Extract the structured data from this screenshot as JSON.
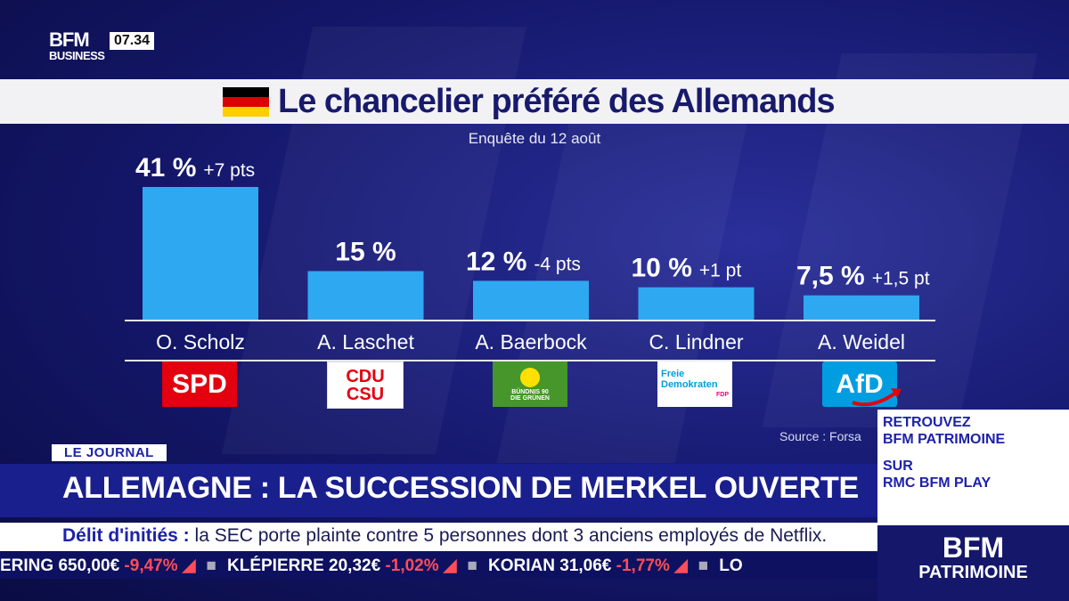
{
  "channel": {
    "logo_top": "BFM",
    "logo_bottom": "BUSINESS",
    "clock": "07.34"
  },
  "chart_data": {
    "type": "bar",
    "title": "Le chancelier préféré des Allemands",
    "subtitle": "Enquête du 12 août",
    "categories": [
      "O. Scholz",
      "A. Laschet",
      "A. Baerbock",
      "C. Lindner",
      "A. Weidel"
    ],
    "values": [
      41,
      15,
      12,
      10,
      7.5
    ],
    "value_labels": [
      "41 %",
      "15 %",
      "12 %",
      "10 %",
      "7,5 %"
    ],
    "changes": [
      "+7 pts",
      "",
      "-4 pts",
      "+1 pt",
      "+1,5 pt"
    ],
    "parties": [
      "SPD",
      "CDU CSU",
      "BÜNDNIS 90 DIE GRÜNEN",
      "Freie Demokraten FDP",
      "AfD"
    ],
    "ylim": [
      0,
      41
    ],
    "bar_color": "#2fa8f2",
    "source": "Source : Forsa"
  },
  "party_logos": {
    "spd": "SPD",
    "cdu_line1": "CDU",
    "cdu_line2": "CSU",
    "gruene_line1": "BÜNDNIS 90",
    "gruene_line2": "DIE GRÜNEN",
    "fdp_line1": "Freie",
    "fdp_line2": "Demokraten",
    "fdp_line3": "FDP",
    "afd": "AfD"
  },
  "lower_third": {
    "tag": "LE JOURNAL",
    "headline": "ALLEMAGNE : LA SUCCESSION DE MERKEL OUVERTE",
    "news_label": "Délit d'initiés :",
    "news_text": " la SEC porte plainte contre 5 personnes dont 3 anciens employés de Netflix.",
    "ticker": [
      {
        "name": "ERING",
        "price": "650,00€",
        "change": "-9,47%"
      },
      {
        "name": "KLÉPIERRE",
        "price": "20,32€",
        "change": "-1,02%"
      },
      {
        "name": "KORIAN",
        "price": "31,06€",
        "change": "-1,77%"
      }
    ],
    "ticker_tail": "LO"
  },
  "promo": {
    "line1": "RETROUVEZ",
    "line2": "BFM PATRIMOINE",
    "line3": "SUR",
    "line4": "RMC BFM PLAY",
    "brand_top": "BFM",
    "brand_bottom": "PATRIMOINE"
  },
  "colors": {
    "accent": "#1d22a8",
    "background": "#14176a",
    "bar": "#2fa8f2"
  }
}
